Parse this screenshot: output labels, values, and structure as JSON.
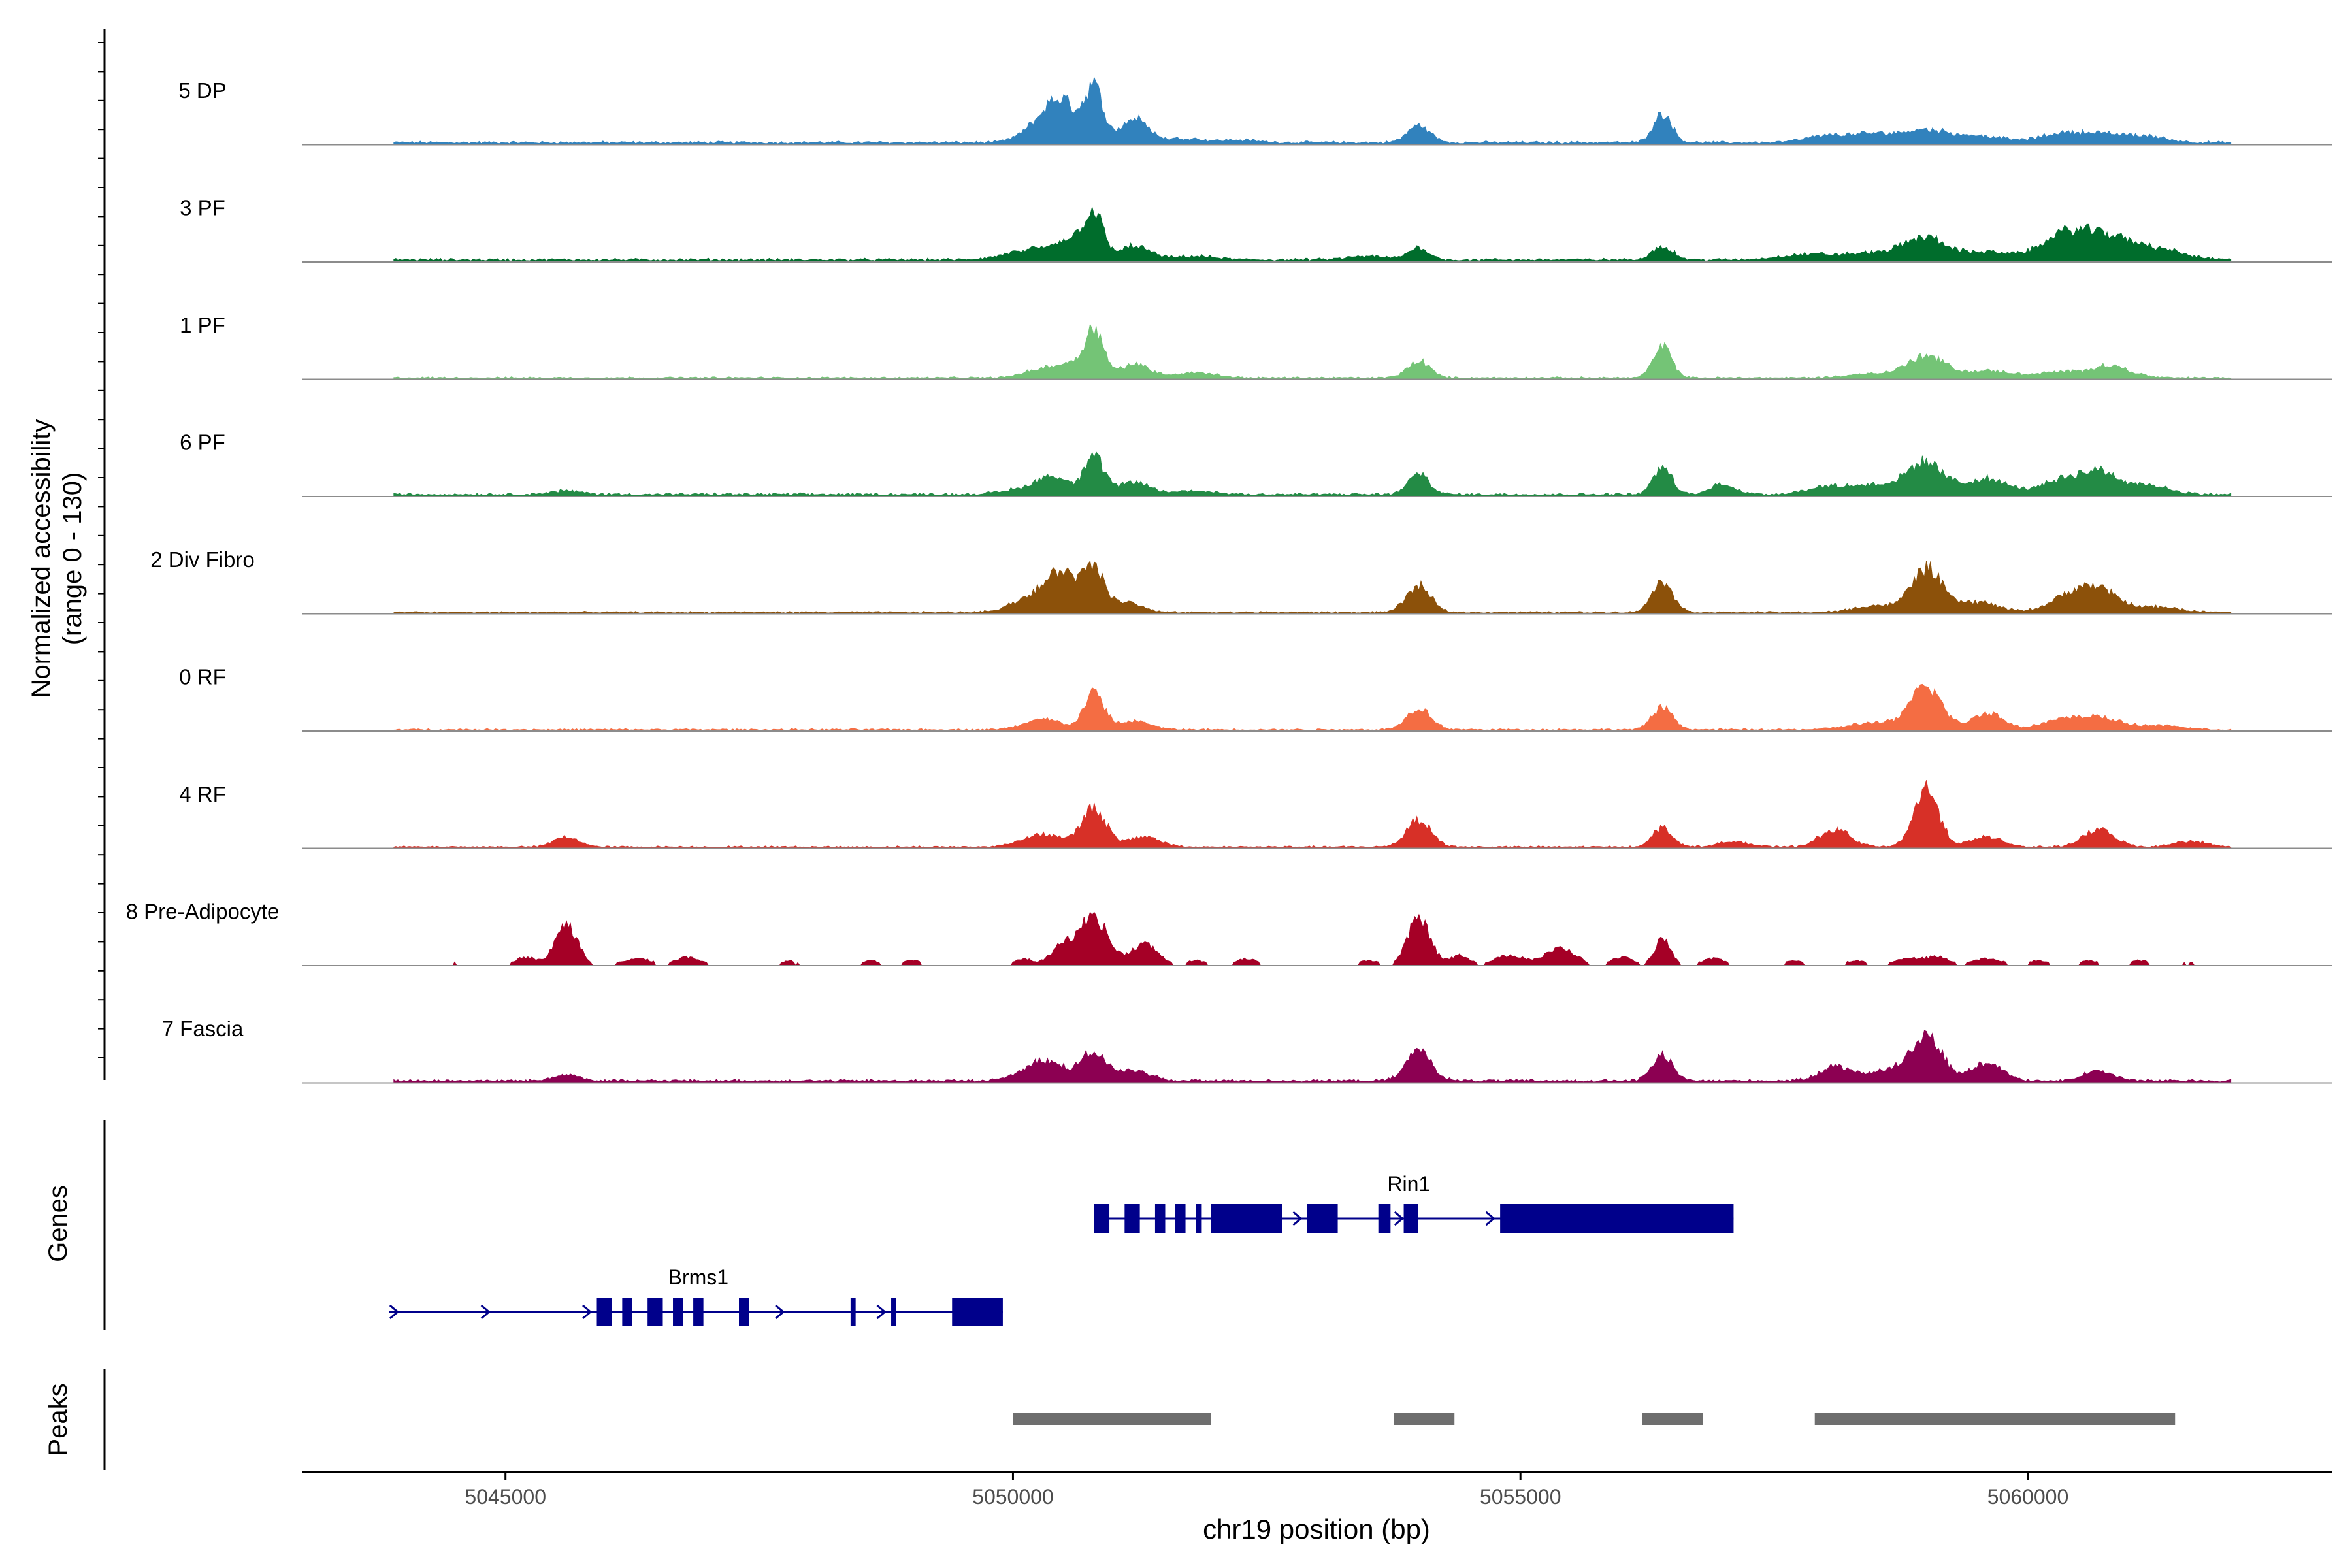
{
  "chart_data": {
    "type": "area",
    "chromosome": "chr19",
    "xlabel": "chr19 position (bp)",
    "ylabel_line1": "Normalized accessibility",
    "ylabel_line2": "(range 0 - 130)",
    "y_range": [
      0,
      130
    ],
    "xlim": [
      5043000,
      5063000
    ],
    "track_xlim": [
      5043000,
      5062000
    ],
    "x_ticks": [
      5045000,
      5050000,
      5055000,
      5060000
    ],
    "x_tick_labels": [
      "5045000",
      "5050000",
      "5055000",
      "5060000"
    ],
    "series": [
      {
        "name": "5 DP",
        "color": "#3182bd",
        "baseline": 3,
        "peaks": [
          [
            5050300,
            22,
            180
          ],
          [
            5050500,
            38,
            150
          ],
          [
            5050800,
            60,
            90
          ],
          [
            5051200,
            28,
            140
          ],
          [
            5051700,
            5,
            150
          ],
          [
            5052200,
            3,
            200
          ],
          [
            5054000,
            20,
            110
          ],
          [
            5056400,
            34,
            90
          ],
          [
            5058000,
            7,
            200
          ],
          [
            5058500,
            10,
            250
          ],
          [
            5059000,
            13,
            200
          ],
          [
            5059500,
            8,
            250
          ],
          [
            5060300,
            7,
            200
          ],
          [
            5060700,
            10,
            300
          ],
          [
            5061200,
            5,
            200
          ]
        ]
      },
      {
        "name": "3 PF",
        "color": "#006d2c",
        "baseline": 3,
        "peaks": [
          [
            5050200,
            12,
            250
          ],
          [
            5050600,
            22,
            150
          ],
          [
            5050800,
            48,
            90
          ],
          [
            5051200,
            16,
            150
          ],
          [
            5051800,
            4,
            200
          ],
          [
            5053500,
            4,
            200
          ],
          [
            5054000,
            14,
            100
          ],
          [
            5056400,
            16,
            100
          ],
          [
            5057800,
            6,
            250
          ],
          [
            5058500,
            8,
            300
          ],
          [
            5059000,
            24,
            200
          ],
          [
            5059600,
            9,
            250
          ],
          [
            5060300,
            18,
            200
          ],
          [
            5060700,
            30,
            300
          ],
          [
            5061300,
            10,
            250
          ]
        ]
      },
      {
        "name": "1 PF",
        "color": "#74c476",
        "baseline": 2,
        "peaks": [
          [
            5050300,
            10,
            180
          ],
          [
            5050600,
            14,
            150
          ],
          [
            5050800,
            52,
            90
          ],
          [
            5051200,
            16,
            150
          ],
          [
            5051800,
            6,
            200
          ],
          [
            5054000,
            20,
            110
          ],
          [
            5056400,
            36,
            90
          ],
          [
            5058500,
            5,
            250
          ],
          [
            5059000,
            24,
            180
          ],
          [
            5059600,
            8,
            250
          ],
          [
            5060300,
            6,
            200
          ],
          [
            5060800,
            14,
            200
          ]
        ]
      },
      {
        "name": "6 PF",
        "color": "#238b45",
        "baseline": 3,
        "peaks": [
          [
            5045600,
            4,
            150
          ],
          [
            5050100,
            6,
            200
          ],
          [
            5050400,
            20,
            150
          ],
          [
            5050800,
            42,
            100
          ],
          [
            5051200,
            14,
            150
          ],
          [
            5051800,
            4,
            200
          ],
          [
            5054000,
            24,
            100
          ],
          [
            5056400,
            32,
            90
          ],
          [
            5057000,
            12,
            120
          ],
          [
            5058000,
            8,
            200
          ],
          [
            5058500,
            11,
            250
          ],
          [
            5059000,
            36,
            180
          ],
          [
            5059600,
            18,
            200
          ],
          [
            5060300,
            14,
            200
          ],
          [
            5060700,
            26,
            200
          ],
          [
            5061200,
            10,
            200
          ]
        ]
      },
      {
        "name": "2 Div Fibro",
        "color": "#8c510a",
        "baseline": 2,
        "peaks": [
          [
            5050200,
            18,
            200
          ],
          [
            5050500,
            42,
            150
          ],
          [
            5050800,
            45,
            100
          ],
          [
            5051100,
            12,
            150
          ],
          [
            5054000,
            30,
            120
          ],
          [
            5056400,
            36,
            100
          ],
          [
            5058500,
            8,
            200
          ],
          [
            5059000,
            50,
            150
          ],
          [
            5059500,
            12,
            200
          ],
          [
            5060400,
            16,
            200
          ],
          [
            5060700,
            24,
            200
          ],
          [
            5061300,
            6,
            200
          ]
        ]
      },
      {
        "name": "0 RF",
        "color": "#f46d43",
        "baseline": 2,
        "peaks": [
          [
            5050300,
            12,
            180
          ],
          [
            5050800,
            42,
            100
          ],
          [
            5051200,
            10,
            150
          ],
          [
            5054000,
            25,
            120
          ],
          [
            5056400,
            26,
            100
          ],
          [
            5058500,
            8,
            250
          ],
          [
            5059000,
            50,
            150
          ],
          [
            5059600,
            20,
            150
          ],
          [
            5060300,
            10,
            200
          ],
          [
            5060700,
            14,
            200
          ],
          [
            5061300,
            5,
            200
          ]
        ]
      },
      {
        "name": "4 RF",
        "color": "#d73027",
        "baseline": 2,
        "peaks": [
          [
            5045600,
            12,
            120
          ],
          [
            5050300,
            15,
            200
          ],
          [
            5050800,
            44,
            120
          ],
          [
            5051300,
            12,
            150
          ],
          [
            5054000,
            32,
            120
          ],
          [
            5056400,
            22,
            100
          ],
          [
            5057100,
            6,
            150
          ],
          [
            5058100,
            20,
            150
          ],
          [
            5059000,
            68,
            120
          ],
          [
            5059600,
            12,
            150
          ],
          [
            5060700,
            20,
            150
          ],
          [
            5061600,
            7,
            150
          ]
        ]
      },
      {
        "name": "8 Pre-Adipocyte",
        "color": "#a50026",
        "baseline": 0,
        "peaks": [
          [
            5044500,
            4,
            60
          ],
          [
            5045200,
            10,
            100
          ],
          [
            5045600,
            48,
            110
          ],
          [
            5046300,
            8,
            150
          ],
          [
            5046800,
            10,
            120
          ],
          [
            5047800,
            5,
            100
          ],
          [
            5048600,
            6,
            80
          ],
          [
            5049000,
            7,
            80
          ],
          [
            5050100,
            8,
            80
          ],
          [
            5050500,
            22,
            130
          ],
          [
            5050800,
            55,
            140
          ],
          [
            5051300,
            25,
            130
          ],
          [
            5051800,
            6,
            100
          ],
          [
            5052300,
            8,
            100
          ],
          [
            5053500,
            6,
            100
          ],
          [
            5054000,
            55,
            110
          ],
          [
            5054400,
            12,
            100
          ],
          [
            5054900,
            12,
            150
          ],
          [
            5055400,
            20,
            150
          ],
          [
            5056000,
            10,
            100
          ],
          [
            5056400,
            30,
            80
          ],
          [
            5056900,
            8,
            120
          ],
          [
            5057700,
            6,
            100
          ],
          [
            5058300,
            6,
            100
          ],
          [
            5058800,
            8,
            120
          ],
          [
            5059100,
            10,
            120
          ],
          [
            5059600,
            8,
            150
          ],
          [
            5060100,
            6,
            100
          ],
          [
            5060600,
            6,
            100
          ],
          [
            5061100,
            6,
            100
          ],
          [
            5061600,
            4,
            100
          ]
        ]
      },
      {
        "name": "7 Fascia",
        "color": "#8c0052",
        "baseline": 3,
        "peaks": [
          [
            5045600,
            8,
            120
          ],
          [
            5050300,
            24,
            200
          ],
          [
            5050800,
            32,
            120
          ],
          [
            5051200,
            12,
            150
          ],
          [
            5054000,
            36,
            120
          ],
          [
            5056400,
            30,
            100
          ],
          [
            5058100,
            16,
            150
          ],
          [
            5058600,
            12,
            200
          ],
          [
            5059000,
            52,
            150
          ],
          [
            5059600,
            22,
            150
          ],
          [
            5060700,
            11,
            150
          ]
        ]
      }
    ],
    "genes_panel_label": "Genes",
    "genes": [
      {
        "name": "Rin1",
        "start": 5050800,
        "end": 5057100,
        "exons": [
          [
            5050800,
            5050950
          ],
          [
            5051100,
            5051250
          ],
          [
            5051400,
            5051500
          ],
          [
            5051600,
            5051700
          ],
          [
            5051800,
            5051860
          ],
          [
            5051950,
            5052650
          ],
          [
            5052900,
            5053200
          ],
          [
            5053600,
            5053720
          ],
          [
            5053850,
            5053990
          ],
          [
            5054800,
            5057100
          ]
        ],
        "arrows": [
          5052800,
          5053800,
          5054700
        ]
      },
      {
        "name": "Brms1",
        "start": 5043850,
        "end": 5049900,
        "exons": [
          [
            5045900,
            5046050
          ],
          [
            5046150,
            5046250
          ],
          [
            5046400,
            5046550
          ],
          [
            5046650,
            5046750
          ],
          [
            5046850,
            5046950
          ],
          [
            5047300,
            5047400
          ],
          [
            5048400,
            5048450
          ],
          [
            5048800,
            5048850
          ],
          [
            5049400,
            5049900
          ]
        ],
        "arrows": [
          5043900,
          5044800,
          5045800,
          5047700,
          5048700
        ]
      }
    ],
    "peaks_panel_label": "Peaks",
    "peak_regions": [
      [
        5050000,
        5051950
      ],
      [
        5053750,
        5054350
      ],
      [
        5056200,
        5056800
      ],
      [
        5057900,
        5061450
      ]
    ]
  }
}
